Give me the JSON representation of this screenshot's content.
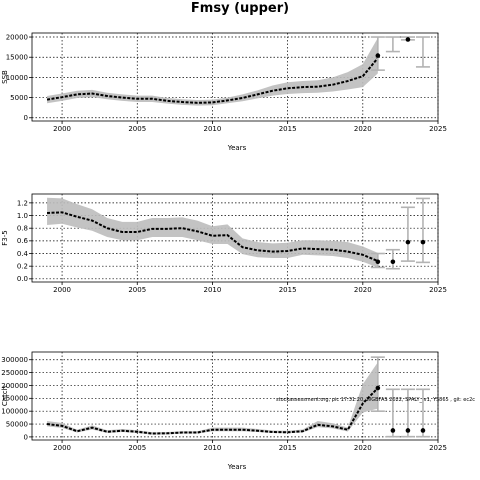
{
  "figure": {
    "title": "Fmsy (upper)",
    "note": "stockassessment.org, pic 17:31:20, WGBFAS 2022, SPALY_ v1, YS865 , git: ec2c"
  },
  "colors": {
    "band": "#bdbdbd",
    "line": "#000000",
    "forecast_bar": "#b3b3b3"
  },
  "chart_data": [
    {
      "type": "line",
      "id": "ssb",
      "title": "",
      "xlabel": "Years",
      "ylabel": "SSB",
      "xlim": [
        1998,
        2025
      ],
      "ylim": [
        -800,
        21000
      ],
      "xticks": [
        2000,
        2005,
        2010,
        2015,
        2020,
        2025
      ],
      "yticks": [
        0,
        5000,
        10000,
        15000,
        20000
      ],
      "grid": true,
      "x": [
        1999,
        2000,
        2001,
        2002,
        2003,
        2004,
        2005,
        2006,
        2007,
        2008,
        2009,
        2010,
        2011,
        2012,
        2013,
        2014,
        2015,
        2016,
        2017,
        2018,
        2019,
        2020,
        2021
      ],
      "estimate": [
        4500,
        5100,
        5800,
        6000,
        5400,
        5000,
        4700,
        4700,
        4200,
        3900,
        3700,
        3800,
        4300,
        4900,
        5800,
        6700,
        7300,
        7600,
        7700,
        8200,
        9100,
        10300,
        14800
      ],
      "lower": [
        3600,
        4200,
        4900,
        5100,
        4600,
        4200,
        3900,
        3900,
        3500,
        3200,
        3000,
        3100,
        3600,
        4100,
        4800,
        5500,
        5900,
        6100,
        6200,
        6500,
        7000,
        7600,
        11000
      ],
      "upper": [
        5400,
        6000,
        6700,
        6900,
        6200,
        5800,
        5500,
        5500,
        4900,
        4600,
        4400,
        4500,
        5000,
        5800,
        6800,
        8000,
        8800,
        9100,
        9300,
        10000,
        11300,
        13300,
        19800
      ],
      "forecast": [
        {
          "x": 2021,
          "low": 11800,
          "high": 20000,
          "point": 15400
        },
        {
          "x": 2022,
          "low": 16400,
          "high": 20000,
          "point": null
        },
        {
          "x": 2023,
          "low": 19300,
          "high": 20000,
          "point": 19400
        },
        {
          "x": 2024,
          "low": 12600,
          "high": 20000,
          "point": null
        }
      ]
    },
    {
      "type": "line",
      "id": "fbar",
      "title": "",
      "xlabel": "",
      "ylabel": "F3-5",
      "xlim": [
        1998,
        2025
      ],
      "ylim": [
        -0.05,
        1.34
      ],
      "xticks": [
        2000,
        2005,
        2010,
        2015,
        2020,
        2025
      ],
      "yticks": [
        0.0,
        0.2,
        0.4,
        0.6,
        0.8,
        1.0,
        1.2
      ],
      "grid": true,
      "x": [
        1999,
        2000,
        2001,
        2002,
        2003,
        2004,
        2005,
        2006,
        2007,
        2008,
        2009,
        2010,
        2011,
        2012,
        2013,
        2014,
        2015,
        2016,
        2017,
        2018,
        2019,
        2020,
        2021
      ],
      "estimate": [
        1.04,
        1.05,
        0.98,
        0.92,
        0.8,
        0.74,
        0.74,
        0.79,
        0.79,
        0.8,
        0.75,
        0.68,
        0.69,
        0.5,
        0.45,
        0.43,
        0.44,
        0.48,
        0.47,
        0.46,
        0.43,
        0.38,
        0.28
      ],
      "lower": [
        0.85,
        0.87,
        0.81,
        0.76,
        0.66,
        0.61,
        0.61,
        0.66,
        0.66,
        0.66,
        0.61,
        0.55,
        0.55,
        0.39,
        0.34,
        0.33,
        0.33,
        0.38,
        0.37,
        0.36,
        0.33,
        0.27,
        0.18
      ],
      "upper": [
        1.28,
        1.27,
        1.18,
        1.1,
        0.96,
        0.9,
        0.9,
        0.96,
        0.96,
        0.97,
        0.92,
        0.83,
        0.86,
        0.64,
        0.58,
        0.56,
        0.57,
        0.61,
        0.61,
        0.6,
        0.58,
        0.51,
        0.41
      ],
      "forecast": [
        {
          "x": 2021,
          "low": 0.18,
          "high": 0.4,
          "point": 0.27
        },
        {
          "x": 2022,
          "low": 0.16,
          "high": 0.46,
          "point": 0.27
        },
        {
          "x": 2023,
          "low": 0.28,
          "high": 1.13,
          "point": 0.58
        },
        {
          "x": 2024,
          "low": 0.26,
          "high": 1.27,
          "point": 0.58
        }
      ]
    },
    {
      "type": "line",
      "id": "catch",
      "title": "",
      "xlabel": "Years",
      "ylabel": "Catch",
      "xlim": [
        1998,
        2025
      ],
      "ylim": [
        -12000,
        330000
      ],
      "xticks": [
        2000,
        2005,
        2010,
        2015,
        2020,
        2025
      ],
      "yticks": [
        0,
        50000,
        100000,
        150000,
        200000,
        250000,
        300000
      ],
      "grid": true,
      "x": [
        1999,
        2000,
        2001,
        2002,
        2003,
        2004,
        2005,
        2006,
        2007,
        2008,
        2009,
        2010,
        2011,
        2012,
        2013,
        2014,
        2015,
        2016,
        2017,
        2018,
        2019,
        2020,
        2021
      ],
      "estimate": [
        50000,
        43000,
        22000,
        36000,
        20000,
        24000,
        20000,
        13000,
        14000,
        17000,
        17000,
        28000,
        28000,
        28000,
        24000,
        19000,
        18000,
        22000,
        47000,
        41000,
        28000,
        130000,
        190000
      ],
      "lower": [
        41000,
        35000,
        17000,
        29000,
        15000,
        19000,
        15000,
        9000,
        10000,
        13000,
        13000,
        22000,
        22000,
        22000,
        19000,
        15000,
        14000,
        17000,
        38000,
        33000,
        21000,
        95000,
        110000
      ],
      "upper": [
        62000,
        54000,
        28000,
        45000,
        26000,
        31000,
        26000,
        18000,
        19000,
        22000,
        22000,
        36000,
        36000,
        36000,
        31000,
        25000,
        24000,
        29000,
        62000,
        53000,
        36000,
        205000,
        290000
      ],
      "forecast": [
        {
          "x": 2021,
          "low": 100000,
          "high": 310000,
          "point": 190000
        },
        {
          "x": 2022,
          "low": 1000,
          "high": 185000,
          "point": 25000
        },
        {
          "x": 2023,
          "low": 1000,
          "high": 185000,
          "point": 25000
        },
        {
          "x": 2024,
          "low": 1000,
          "high": 185000,
          "point": 25000
        }
      ]
    }
  ]
}
